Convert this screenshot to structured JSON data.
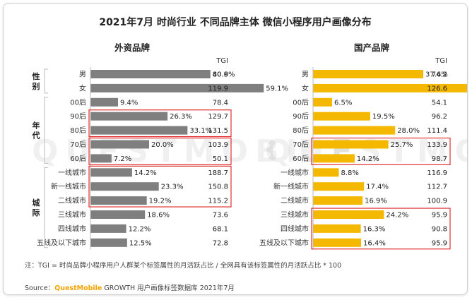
{
  "title": "2021年7月 时尚行业 不同品牌主体 微信小程序用户画像分布",
  "watermark": "QUESTMOBILE",
  "footnote": "注：TGI = 时尚品牌小程序用户人群某个标签属性的月活跃占比 / 全网具有该标签属性的月活跃占比 * 100",
  "source": {
    "prefix": "Source：",
    "brand": "QuestMobile",
    "rest": " GROWTH 用户画像标签数据库 2021年7月"
  },
  "chart_data": [
    {
      "type": "bar",
      "title": "外资品牌",
      "tgi_label": "TGI",
      "bar_color": "#7f7f7f",
      "groups": [
        {
          "name": "性别",
          "start": 0,
          "end": 1
        },
        {
          "name": "年代",
          "start": 2,
          "end": 6
        },
        {
          "name": "城际",
          "start": 7,
          "end": 12
        }
      ],
      "categories": [
        "男",
        "女",
        "00后",
        "90后",
        "80后",
        "70后",
        "60后",
        "一线城市",
        "新一线城市",
        "二线城市",
        "三线城市",
        "四线城市",
        "五线及以下城市"
      ],
      "values": [
        40.9,
        59.1,
        9.4,
        26.3,
        33.1,
        20.0,
        7.2,
        14.2,
        23.3,
        19.2,
        18.6,
        12.2,
        12.5
      ],
      "value_labels": [
        "40.9%",
        "59.1%",
        "9.4%",
        "26.3%",
        "33.1%",
        "20.0%",
        "7.2%",
        "14.2%",
        "23.3%",
        "19.2%",
        "18.6%",
        "12.2%",
        "12.5%"
      ],
      "tgi": [
        "80.6",
        "119.9",
        "78.4",
        "129.7",
        "131.5",
        "103.9",
        "50.1",
        "188.7",
        "150.8",
        "115.2",
        "73.6",
        "68.1",
        "72.8"
      ],
      "highlights": [
        [
          3,
          4
        ],
        [
          5,
          6
        ],
        [
          7,
          9
        ]
      ]
    },
    {
      "type": "bar",
      "title": "国产品牌",
      "tgi_label": "TGI",
      "bar_color": "#f5b800",
      "groups": [],
      "categories": [
        "男",
        "女",
        "00后",
        "90后",
        "80后",
        "70后",
        "60后",
        "一线城市",
        "新一线城市",
        "二线城市",
        "三线城市",
        "四线城市",
        "五线及以下城市"
      ],
      "values": [
        37.6,
        62.4,
        6.5,
        19.5,
        28.0,
        25.7,
        14.2,
        8.8,
        17.4,
        16.9,
        24.2,
        16.3,
        16.4
      ],
      "value_labels": [
        "37.6%",
        "62.4%",
        "6.5%",
        "19.5%",
        "28.0%",
        "25.7%",
        "14.2%",
        "8.8%",
        "17.4%",
        "16.9%",
        "24.2%",
        "16.3%",
        "16.4%"
      ],
      "tgi": [
        "74.2",
        "126.6",
        "54.1",
        "96.2",
        "111.4",
        "133.9",
        "98.7",
        "116.9",
        "112.7",
        "100.9",
        "95.9",
        "90.8",
        "95.9"
      ],
      "highlights": [
        [
          5,
          6
        ],
        [
          10,
          12
        ]
      ]
    }
  ]
}
